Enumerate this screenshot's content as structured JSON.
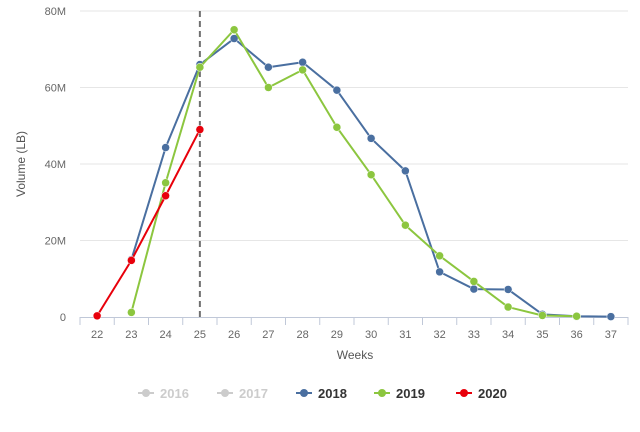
{
  "chart_data": {
    "type": "line",
    "xlabel": "Weeks",
    "ylabel": "Volume (LB)",
    "categories": [
      "22",
      "23",
      "24",
      "25",
      "26",
      "27",
      "28",
      "29",
      "30",
      "31",
      "32",
      "33",
      "34",
      "35",
      "36",
      "37"
    ],
    "x_ticks": [
      "22",
      "23",
      "24",
      "25",
      "26",
      "27",
      "28",
      "29",
      "30",
      "31",
      "32",
      "33",
      "34",
      "35",
      "36",
      "37"
    ],
    "ylim": [
      0,
      80000000
    ],
    "y_ticks": [
      0,
      20000000,
      40000000,
      60000000,
      80000000
    ],
    "y_tick_labels": [
      "0",
      "20M",
      "40M",
      "60M",
      "80M"
    ],
    "grid": "horizontal",
    "current_week_marker": "25",
    "legend_placement": "bottom",
    "series": [
      {
        "name": "2016",
        "color": "#cccccc",
        "visible": false,
        "x": [],
        "values": []
      },
      {
        "name": "2017",
        "color": "#cccccc",
        "visible": false,
        "x": [],
        "values": []
      },
      {
        "name": "2018",
        "color": "#4a6fa0",
        "visible": true,
        "x": [
          "23",
          "24",
          "25",
          "26",
          "27",
          "28",
          "29",
          "30",
          "31",
          "32",
          "33",
          "34",
          "35",
          "36",
          "37"
        ],
        "values": [
          15000000,
          44300000,
          66000000,
          72800000,
          65300000,
          66600000,
          59300000,
          46700000,
          38200000,
          11800000,
          7300000,
          7200000,
          700000,
          200000,
          100000
        ]
      },
      {
        "name": "2019",
        "color": "#8cc63f",
        "visible": true,
        "x": [
          "23",
          "24",
          "25",
          "26",
          "27",
          "28",
          "29",
          "30",
          "31",
          "32",
          "33",
          "34",
          "35",
          "36"
        ],
        "values": [
          1200000,
          35100000,
          65300000,
          75100000,
          60000000,
          64600000,
          49600000,
          37200000,
          24000000,
          16000000,
          9300000,
          2600000,
          400000,
          200000
        ]
      },
      {
        "name": "2020",
        "color": "#e8000b",
        "visible": true,
        "x": [
          "22",
          "23",
          "24",
          "25"
        ],
        "values": [
          300000,
          14800000,
          31700000,
          49000000
        ]
      }
    ]
  }
}
